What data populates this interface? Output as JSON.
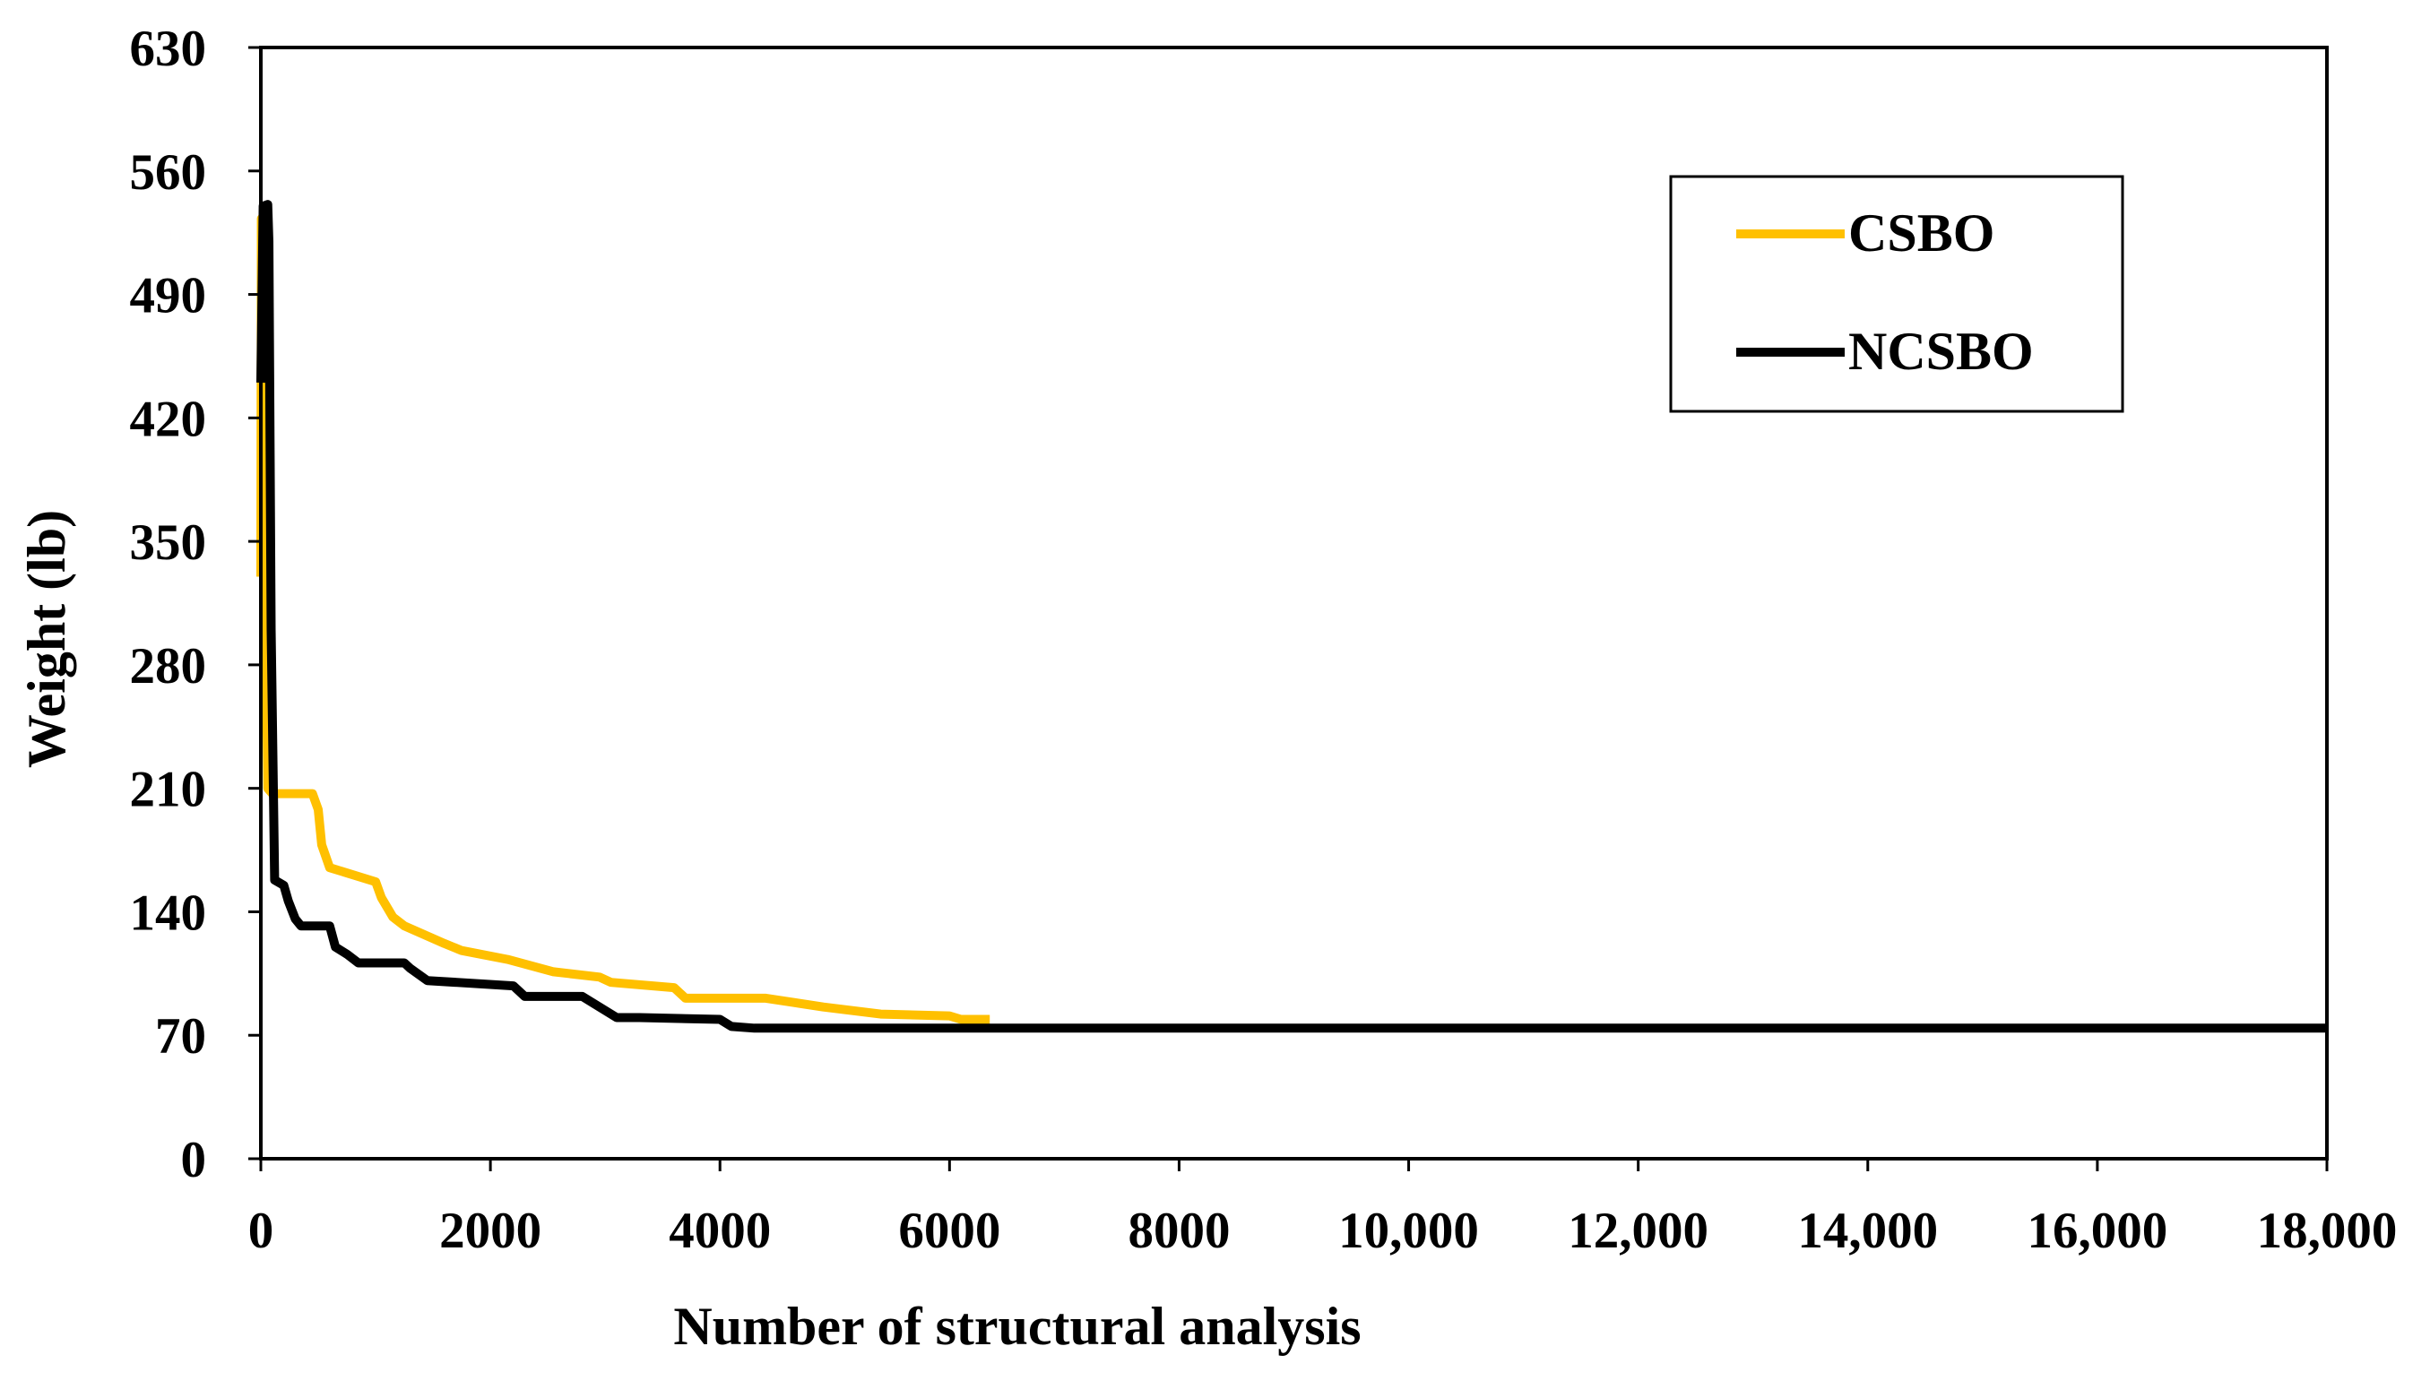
{
  "chart_data": {
    "type": "line",
    "title": "",
    "xlabel": "Number of structural analysis",
    "ylabel": "Weight  (lb)",
    "xlim": [
      0,
      18000
    ],
    "ylim": [
      0,
      630
    ],
    "x_ticks": [
      {
        "value": 0,
        "label": "0"
      },
      {
        "value": 2000,
        "label": "2000"
      },
      {
        "value": 4000,
        "label": "4000"
      },
      {
        "value": 6000,
        "label": "6000"
      },
      {
        "value": 8000,
        "label": "8000"
      },
      {
        "value": 10000,
        "label": "10,000"
      },
      {
        "value": 12000,
        "label": "12,000"
      },
      {
        "value": 14000,
        "label": "14,000"
      },
      {
        "value": 16000,
        "label": "16,000"
      },
      {
        "value": 18000,
        "label": "18,000"
      }
    ],
    "y_ticks": [
      {
        "value": 0,
        "label": "0"
      },
      {
        "value": 70,
        "label": "70"
      },
      {
        "value": 140,
        "label": "140"
      },
      {
        "value": 210,
        "label": "210"
      },
      {
        "value": 280,
        "label": "280"
      },
      {
        "value": 350,
        "label": "350"
      },
      {
        "value": 420,
        "label": "420"
      },
      {
        "value": 490,
        "label": "490"
      },
      {
        "value": 560,
        "label": "560"
      },
      {
        "value": 630,
        "label": "630"
      }
    ],
    "grid": false,
    "legend_position": "top-right",
    "series": [
      {
        "name": "CSBO",
        "color": "#FFC000",
        "points": [
          [
            0,
            330
          ],
          [
            5,
            533
          ],
          [
            20,
            450
          ],
          [
            60,
            210
          ],
          [
            100,
            207
          ],
          [
            450,
            207
          ],
          [
            500,
            198
          ],
          [
            530,
            178
          ],
          [
            600,
            165
          ],
          [
            1000,
            157
          ],
          [
            1050,
            148
          ],
          [
            1150,
            137
          ],
          [
            1250,
            132
          ],
          [
            1600,
            122
          ],
          [
            1750,
            118
          ],
          [
            2150,
            113
          ],
          [
            2550,
            106
          ],
          [
            2950,
            103
          ],
          [
            3050,
            100
          ],
          [
            3600,
            97
          ],
          [
            3700,
            91
          ],
          [
            4400,
            91
          ],
          [
            4600,
            89
          ],
          [
            4900,
            86
          ],
          [
            5400,
            82
          ],
          [
            6000,
            81
          ],
          [
            6100,
            79
          ],
          [
            6350,
            79
          ]
        ]
      },
      {
        "name": "NCSBO",
        "color": "#000000",
        "points": [
          [
            0,
            440
          ],
          [
            20,
            540
          ],
          [
            60,
            541
          ],
          [
            70,
            520
          ],
          [
            90,
            300
          ],
          [
            120,
            158
          ],
          [
            200,
            155
          ],
          [
            240,
            146
          ],
          [
            300,
            136
          ],
          [
            350,
            132
          ],
          [
            600,
            132
          ],
          [
            650,
            120
          ],
          [
            750,
            116
          ],
          [
            850,
            111
          ],
          [
            1250,
            111
          ],
          [
            1300,
            108
          ],
          [
            1450,
            101
          ],
          [
            2200,
            98
          ],
          [
            2300,
            92
          ],
          [
            2800,
            92
          ],
          [
            3100,
            80
          ],
          [
            3300,
            80
          ],
          [
            4000,
            79
          ],
          [
            4100,
            75
          ],
          [
            4300,
            74
          ],
          [
            18000,
            74
          ]
        ]
      }
    ]
  }
}
